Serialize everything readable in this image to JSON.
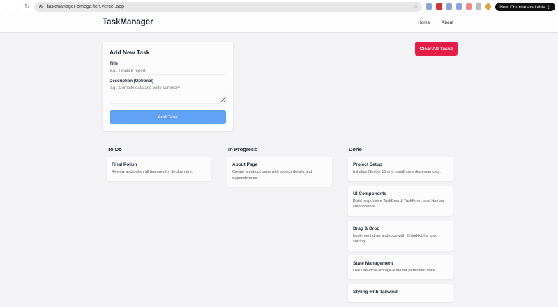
{
  "browser": {
    "url": "taskmanager-omega-ten.vercel.app",
    "update_label": "New Chrome available"
  },
  "navbar": {
    "brand": "TaskManager",
    "links": [
      "Home",
      "About"
    ]
  },
  "form": {
    "heading": "Add New Task",
    "title_label": "Title",
    "title_placeholder": "e.g., Finalize report",
    "title_value": "",
    "desc_label": "Description (Optional)",
    "desc_placeholder": "e.g., Compile data and write summary",
    "desc_value": "",
    "submit_label": "Add Task"
  },
  "clear_label": "Clear All Tasks",
  "columns": [
    {
      "title": "To Do",
      "tasks": [
        {
          "title": "Final Polish",
          "desc": "Review and polish all features for deployment."
        }
      ]
    },
    {
      "title": "In Progress",
      "tasks": [
        {
          "title": "About Page",
          "desc": "Create an about page with project details and dependencies."
        }
      ]
    },
    {
      "title": "Done",
      "tasks": [
        {
          "title": "Project Setup",
          "desc": "Initialize Next.js 15 and install core dependencies."
        },
        {
          "title": "UI Components",
          "desc": "Build responsive TaskBoard, TaskForm, and Navbar components."
        },
        {
          "title": "Drag & Drop",
          "desc": "Implement drag and drop with @dnd-kit for task sorting."
        },
        {
          "title": "State Management",
          "desc": "Use use-local-storage-state for persistent state."
        },
        {
          "title": "Styling with Tailwind",
          "desc": ""
        }
      ]
    }
  ]
}
